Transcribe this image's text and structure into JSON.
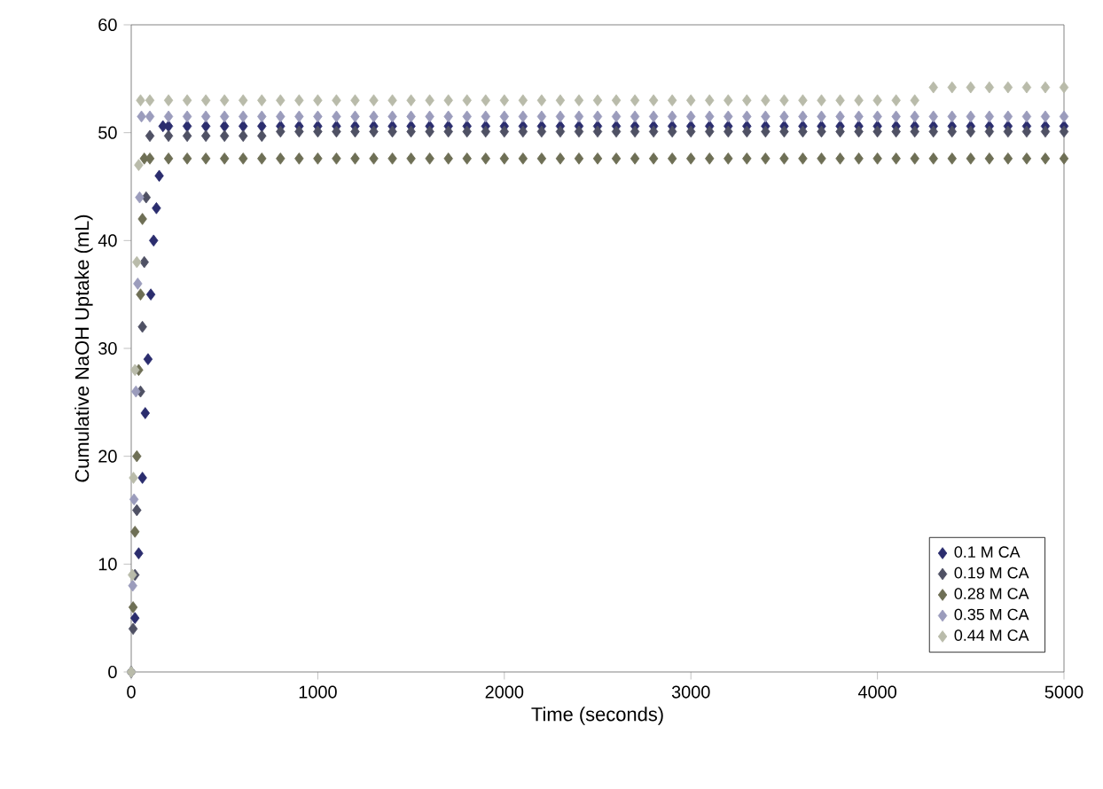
{
  "chart_data": {
    "type": "scatter",
    "xlabel": "Time (seconds)",
    "ylabel": "Cumulative NaOH Uptake (mL)",
    "xlim": [
      0,
      5000
    ],
    "xticks": [
      0,
      1000,
      2000,
      3000,
      4000,
      5000
    ],
    "ylim": [
      0,
      60
    ],
    "yticks": [
      0,
      10,
      20,
      30,
      40,
      50,
      60
    ],
    "grid": false,
    "legend": "bottom right",
    "marker": "diamond",
    "series": [
      {
        "name": "0.1 M CA",
        "color": "#2b2d6e",
        "x": [
          0,
          20,
          40,
          60,
          75,
          90,
          105,
          120,
          135,
          150,
          170,
          200,
          300,
          400,
          500,
          600,
          700,
          800,
          900,
          1000,
          1100,
          1200,
          1300,
          1400,
          1500,
          1600,
          1700,
          1800,
          1900,
          2000,
          2100,
          2200,
          2300,
          2400,
          2500,
          2600,
          2700,
          2800,
          2900,
          3000,
          3100,
          3200,
          3300,
          3400,
          3500,
          3600,
          3700,
          3800,
          3900,
          4000,
          4100,
          4200,
          4300,
          4400,
          4500,
          4600,
          4700,
          4800,
          4900,
          5000
        ],
        "values": [
          0,
          5,
          11,
          18,
          24,
          29,
          35,
          40,
          43,
          46,
          50.6,
          50.6,
          50.6,
          50.6,
          50.6,
          50.6,
          50.6,
          50.6,
          50.6,
          50.6,
          50.6,
          50.6,
          50.6,
          50.6,
          50.6,
          50.6,
          50.6,
          50.6,
          50.6,
          50.6,
          50.6,
          50.6,
          50.6,
          50.6,
          50.6,
          50.6,
          50.6,
          50.6,
          50.6,
          50.6,
          50.6,
          50.6,
          50.6,
          50.6,
          50.6,
          50.6,
          50.6,
          50.6,
          50.6,
          50.6,
          50.6,
          50.6,
          50.6,
          50.6,
          50.6,
          50.6,
          50.6,
          50.6,
          50.6,
          50.6
        ]
      },
      {
        "name": "0.19 M CA",
        "color": "#4f5164",
        "x": [
          0,
          10,
          20,
          30,
          40,
          50,
          60,
          70,
          80,
          100,
          200,
          300,
          400,
          500,
          600,
          700,
          800,
          900,
          1000,
          1100,
          1200,
          1300,
          1400,
          1500,
          1600,
          1700,
          1800,
          1900,
          2000,
          2100,
          2200,
          2300,
          2400,
          2500,
          2600,
          2700,
          2800,
          2900,
          3000,
          3100,
          3200,
          3300,
          3400,
          3500,
          3600,
          3700,
          3800,
          3900,
          4000,
          4100,
          4200,
          4300,
          4400,
          4500,
          4600,
          4700,
          4800,
          4900,
          5000
        ],
        "values": [
          0,
          4,
          9,
          15,
          null,
          26,
          32,
          38,
          44,
          49.7,
          49.7,
          49.7,
          49.7,
          49.7,
          49.7,
          49.7,
          50.1,
          50.1,
          50.1,
          50.1,
          50.1,
          50.1,
          50.1,
          50.1,
          50.1,
          50.1,
          50.1,
          50.1,
          50.1,
          50.1,
          50.1,
          50.1,
          50.1,
          50.1,
          50.1,
          50.1,
          50.1,
          50.1,
          50.1,
          50.1,
          50.1,
          50.1,
          50.1,
          50.1,
          50.1,
          50.1,
          50.1,
          50.1,
          50.1,
          50.1,
          50.1,
          50.1,
          50.1,
          50.1,
          50.1,
          50.1,
          50.1,
          50.1,
          50.1
        ]
      },
      {
        "name": "0.28 M CA",
        "color": "#6e6f55",
        "x": [
          0,
          10,
          20,
          30,
          40,
          50,
          60,
          70,
          100,
          200,
          300,
          400,
          500,
          600,
          700,
          800,
          900,
          1000,
          1100,
          1200,
          1300,
          1400,
          1500,
          1600,
          1700,
          1800,
          1900,
          2000,
          2100,
          2200,
          2300,
          2400,
          2500,
          2600,
          2700,
          2800,
          2900,
          3000,
          3100,
          3200,
          3300,
          3400,
          3500,
          3600,
          3700,
          3800,
          3900,
          4000,
          4100,
          4200,
          4300,
          4400,
          4500,
          4600,
          4700,
          4800,
          4900,
          5000
        ],
        "values": [
          0,
          6,
          13,
          20,
          28,
          35,
          42,
          47.6,
          47.6,
          47.6,
          47.6,
          47.6,
          47.6,
          47.6,
          47.6,
          47.6,
          47.6,
          47.6,
          47.6,
          47.6,
          47.6,
          47.6,
          47.6,
          47.6,
          47.6,
          47.6,
          47.6,
          47.6,
          47.6,
          47.6,
          47.6,
          47.6,
          47.6,
          47.6,
          47.6,
          47.6,
          47.6,
          47.6,
          47.6,
          47.6,
          47.6,
          47.6,
          47.6,
          47.6,
          47.6,
          47.6,
          47.6,
          47.6,
          47.6,
          47.6,
          47.6,
          47.6,
          47.6,
          47.6,
          47.6,
          47.6,
          47.6,
          47.6
        ]
      },
      {
        "name": "0.35 M CA",
        "color": "#9b9cbc",
        "x": [
          0,
          8,
          15,
          25,
          35,
          45,
          55,
          100,
          200,
          300,
          400,
          500,
          600,
          700,
          800,
          900,
          1000,
          1100,
          1200,
          1300,
          1400,
          1500,
          1600,
          1700,
          1800,
          1900,
          2000,
          2100,
          2200,
          2300,
          2400,
          2500,
          2600,
          2700,
          2800,
          2900,
          3000,
          3100,
          3200,
          3300,
          3400,
          3500,
          3600,
          3700,
          3800,
          3900,
          4000,
          4100,
          4200,
          4300,
          4400,
          4500,
          4600,
          4700,
          4800,
          4900,
          5000
        ],
        "values": [
          0,
          8,
          16,
          26,
          36,
          44,
          51.5,
          51.5,
          51.5,
          51.5,
          51.5,
          51.5,
          51.5,
          51.5,
          51.5,
          51.5,
          51.5,
          51.5,
          51.5,
          51.5,
          51.5,
          51.5,
          51.5,
          51.5,
          51.5,
          51.5,
          51.5,
          51.5,
          51.5,
          51.5,
          51.5,
          51.5,
          51.5,
          51.5,
          51.5,
          51.5,
          51.5,
          51.5,
          51.5,
          51.5,
          51.5,
          51.5,
          51.5,
          51.5,
          51.5,
          51.5,
          51.5,
          51.5,
          51.5,
          51.5,
          51.5,
          51.5,
          51.5,
          51.5,
          51.5,
          51.5,
          51.5
        ]
      },
      {
        "name": "0.44 M CA",
        "color": "#b9bbaa",
        "x": [
          0,
          6,
          12,
          20,
          30,
          40,
          50,
          100,
          200,
          300,
          400,
          500,
          600,
          700,
          800,
          900,
          1000,
          1100,
          1200,
          1300,
          1400,
          1500,
          1600,
          1700,
          1800,
          1900,
          2000,
          2100,
          2200,
          2300,
          2400,
          2500,
          2600,
          2700,
          2800,
          2900,
          3000,
          3100,
          3200,
          3300,
          3400,
          3500,
          3600,
          3700,
          3800,
          3900,
          4000,
          4100,
          4200,
          4300,
          4400,
          4500,
          4600,
          4700,
          4800,
          4900,
          5000
        ],
        "values": [
          0,
          9,
          18,
          28,
          38,
          47,
          53,
          53,
          53,
          53,
          53,
          53,
          53,
          53,
          53,
          53,
          53,
          53,
          53,
          53,
          53,
          53,
          53,
          53,
          53,
          53,
          53,
          53,
          53,
          53,
          53,
          53,
          53,
          53,
          53,
          53,
          53,
          53,
          53,
          53,
          53,
          53,
          53,
          53,
          53,
          53,
          53,
          53,
          53,
          54.2,
          54.2,
          54.2,
          54.2,
          54.2,
          54.2,
          54.2,
          54.2
        ]
      }
    ]
  }
}
